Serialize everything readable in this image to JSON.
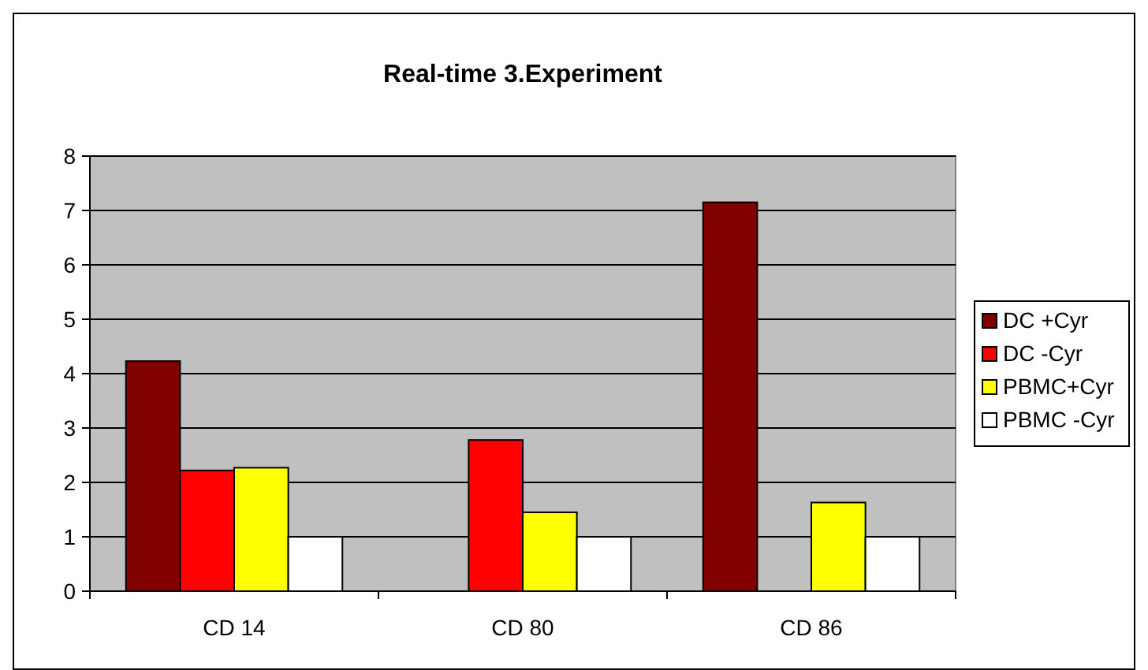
{
  "chart_data": {
    "type": "bar",
    "title": "Real-time 3.Experiment",
    "categories": [
      "CD 14",
      "CD 80",
      "CD 86"
    ],
    "series": [
      {
        "name": "DC +Cyr",
        "color": "#800000",
        "values": [
          4.23,
          null,
          7.15
        ]
      },
      {
        "name": "DC -Cyr",
        "color": "#ff0000",
        "values": [
          2.22,
          2.78,
          null
        ]
      },
      {
        "name": "PBMC+Cyr",
        "color": "#ffff00",
        "values": [
          2.27,
          1.45,
          1.63
        ]
      },
      {
        "name": "PBMC -Cyr",
        "color": "#ffffff",
        "values": [
          1,
          1,
          1
        ]
      }
    ],
    "ylim": [
      0,
      8
    ],
    "yticks": [
      0,
      1,
      2,
      3,
      4,
      5,
      6,
      7,
      8
    ],
    "grid": "y",
    "legend": "right"
  }
}
